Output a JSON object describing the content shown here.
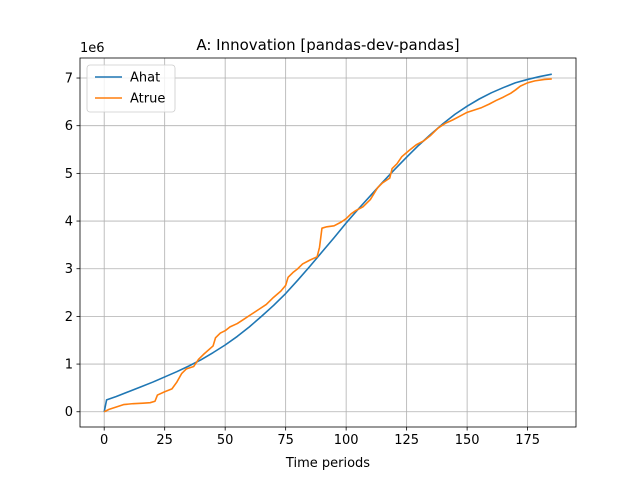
{
  "chart_data": {
    "type": "line",
    "title": "A: Innovation [pandas-dev-pandas]",
    "xlabel": "Time periods",
    "ylabel": "",
    "y_offset_label": "1e6",
    "xlim": [
      -10,
      195
    ],
    "ylim": [
      -320000,
      7420000
    ],
    "grid": true,
    "legend_position": "upper left",
    "x_ticks": [
      0,
      25,
      50,
      75,
      100,
      125,
      150,
      175
    ],
    "x_tick_labels": [
      "0",
      "25",
      "50",
      "75",
      "100",
      "125",
      "150",
      "175"
    ],
    "y_ticks": [
      0,
      1000000,
      2000000,
      3000000,
      4000000,
      5000000,
      6000000,
      7000000
    ],
    "y_tick_labels": [
      "0",
      "1",
      "2",
      "3",
      "4",
      "5",
      "6",
      "7"
    ],
    "series": [
      {
        "name": "Ahat",
        "color": "#1f77b4",
        "x": [
          0,
          1,
          5,
          10,
          15,
          20,
          25,
          30,
          35,
          40,
          45,
          50,
          55,
          60,
          65,
          70,
          75,
          80,
          85,
          90,
          95,
          100,
          105,
          110,
          115,
          120,
          125,
          130,
          135,
          140,
          145,
          150,
          155,
          160,
          165,
          170,
          175,
          180,
          185
        ],
        "values": [
          0,
          250000,
          320000,
          420000,
          520000,
          620000,
          730000,
          840000,
          960000,
          1090000,
          1240000,
          1400000,
          1580000,
          1780000,
          2000000,
          2230000,
          2480000,
          2760000,
          3050000,
          3350000,
          3650000,
          3960000,
          4250000,
          4530000,
          4810000,
          5080000,
          5340000,
          5590000,
          5820000,
          6040000,
          6240000,
          6410000,
          6560000,
          6690000,
          6800000,
          6900000,
          6970000,
          7030000,
          7080000
        ]
      },
      {
        "name": "Atrue",
        "color": "#ff7f0e",
        "x": [
          0,
          2,
          5,
          8,
          12,
          16,
          19,
          21,
          22,
          25,
          28,
          30,
          32,
          34,
          37,
          39,
          41,
          45,
          46,
          48,
          50,
          52,
          55,
          58,
          61,
          64,
          67,
          70,
          73,
          75,
          76,
          78,
          80,
          82,
          85,
          88,
          89,
          90,
          92,
          95,
          98,
          100,
          102,
          104,
          107,
          110,
          113,
          115,
          118,
          119,
          121,
          123,
          126,
          129,
          132,
          135,
          138,
          141,
          144,
          147,
          150,
          153,
          156,
          159,
          162,
          165,
          168,
          170,
          172,
          175,
          178,
          182,
          185
        ],
        "values": [
          0,
          50000,
          100000,
          150000,
          170000,
          180000,
          190000,
          220000,
          350000,
          420000,
          480000,
          620000,
          800000,
          900000,
          950000,
          1100000,
          1200000,
          1380000,
          1550000,
          1650000,
          1700000,
          1780000,
          1850000,
          1950000,
          2050000,
          2150000,
          2250000,
          2400000,
          2530000,
          2650000,
          2820000,
          2920000,
          3000000,
          3100000,
          3180000,
          3250000,
          3450000,
          3850000,
          3880000,
          3900000,
          3980000,
          4050000,
          4150000,
          4220000,
          4300000,
          4450000,
          4700000,
          4800000,
          4900000,
          5100000,
          5200000,
          5350000,
          5480000,
          5600000,
          5680000,
          5800000,
          5950000,
          6050000,
          6120000,
          6200000,
          6280000,
          6330000,
          6380000,
          6450000,
          6530000,
          6600000,
          6680000,
          6750000,
          6830000,
          6900000,
          6940000,
          6970000,
          6980000
        ]
      }
    ]
  }
}
